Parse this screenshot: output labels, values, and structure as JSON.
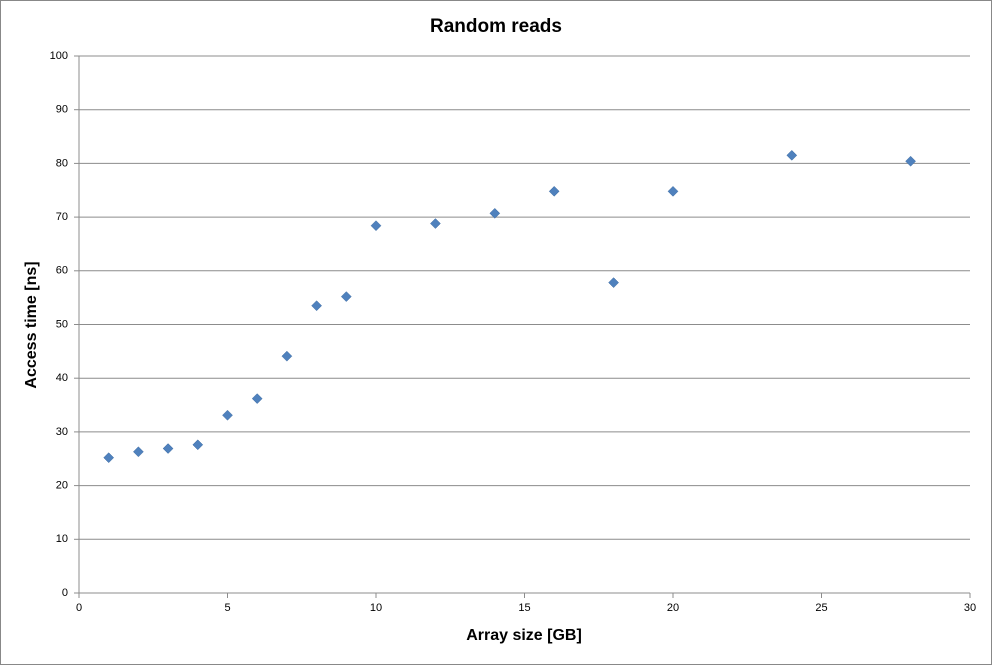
{
  "chart_data": {
    "type": "scatter",
    "title": "Random reads",
    "x_label": "Array size [GB]",
    "y_label": "Access time [ns]",
    "x": [
      1,
      2,
      3,
      4,
      5,
      6,
      7,
      8,
      9,
      10,
      12,
      14,
      16,
      18,
      20,
      24,
      28
    ],
    "values": [
      25.2,
      26.3,
      26.9,
      27.6,
      33.1,
      36.2,
      44.1,
      53.5,
      55.2,
      68.4,
      68.8,
      70.7,
      74.8,
      57.8,
      74.8,
      81.5,
      80.4
    ],
    "color": "#4f81bd",
    "xlim": [
      0,
      30
    ],
    "xticks": [
      0,
      5,
      10,
      15,
      20,
      25,
      30
    ],
    "ylim": [
      0,
      100
    ],
    "yticks": [
      0,
      10,
      20,
      30,
      40,
      50,
      60,
      70,
      80,
      90,
      100
    ],
    "grid": true
  }
}
